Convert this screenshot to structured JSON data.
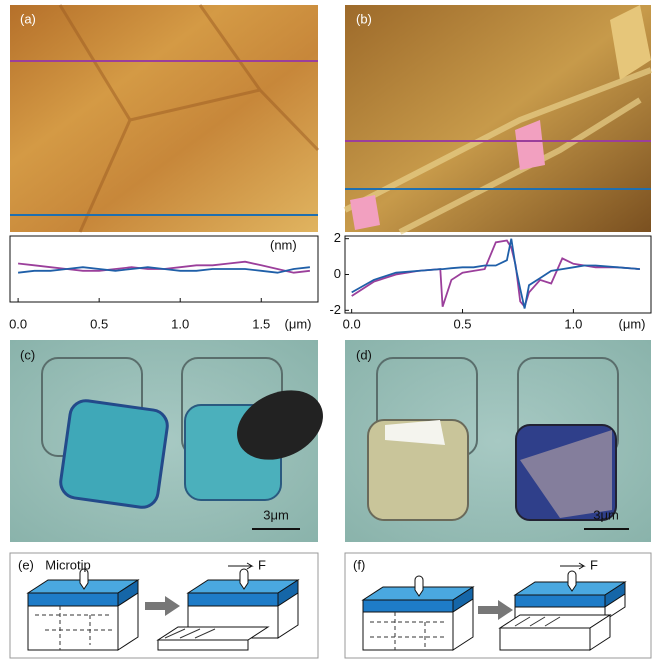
{
  "panels": {
    "a": "(a)",
    "b": "(b)",
    "c": "(c)",
    "d": "(d)",
    "e": "(e)",
    "f": "(f)"
  },
  "chart_data": [
    {
      "type": "line",
      "y_unit_label": "(nm)",
      "x_unit_label": "(μm)",
      "xlim": [
        -0.05,
        1.85
      ],
      "ylim": [
        -1.8,
        1.8
      ],
      "xticks": [
        {
          "value": 0,
          "label": "0.0"
        },
        0.5,
        {
          "value": 1,
          "label": "1.0"
        },
        1.5
      ],
      "x": [
        0,
        0.1,
        0.2,
        0.3,
        0.4,
        0.5,
        0.6,
        0.7,
        0.8,
        0.9,
        1.0,
        1.1,
        1.2,
        1.3,
        1.4,
        1.5,
        1.6,
        1.7,
        1.8
      ],
      "series": [
        {
          "color": "#9b3f9b",
          "values": [
            0.3,
            0.2,
            0.1,
            0.0,
            -0.1,
            -0.1,
            0.0,
            0.1,
            0.0,
            0.0,
            0.1,
            0.2,
            0.2,
            0.3,
            0.4,
            0.2,
            0.0,
            -0.2,
            -0.1
          ]
        },
        {
          "color": "#1f5fa8",
          "values": [
            -0.2,
            -0.1,
            -0.1,
            0.0,
            0.1,
            0.0,
            -0.1,
            0.0,
            0.1,
            0.0,
            -0.1,
            -0.1,
            0.0,
            0.0,
            0.0,
            -0.1,
            -0.2,
            0.0,
            0.1
          ]
        }
      ]
    },
    {
      "type": "line",
      "x_unit_label": "(μm)",
      "xlim": [
        -0.03,
        1.35
      ],
      "ylim": [
        -2.15,
        2.15
      ],
      "yticks": [
        2,
        0,
        -2
      ],
      "xticks": [
        {
          "value": 0,
          "label": "0.0"
        },
        0.5,
        {
          "value": 1,
          "label": "1.0"
        }
      ],
      "x": [
        0,
        0.1,
        0.2,
        0.3,
        0.4,
        0.41,
        0.45,
        0.5,
        0.55,
        0.6,
        0.65,
        0.7,
        0.72,
        0.74,
        0.76,
        0.78,
        0.8,
        0.85,
        0.9,
        0.95,
        1.0,
        1.05,
        1.1,
        1.2,
        1.3
      ],
      "series": [
        {
          "color": "#9b3f9b",
          "values": [
            -1.2,
            -0.4,
            0,
            0.2,
            0.3,
            -1.8,
            -0.3,
            0.1,
            0.2,
            0.3,
            1.8,
            1.9,
            1.5,
            0.5,
            -1.5,
            -1.8,
            -1.0,
            -0.3,
            -0.5,
            0.9,
            0.6,
            0.5,
            0.4,
            0.4,
            0.3
          ]
        },
        {
          "color": "#1f5fa8",
          "values": [
            -1.0,
            -0.3,
            0.1,
            0.2,
            0.3,
            0.3,
            0.35,
            0.4,
            0.4,
            0.5,
            0.5,
            0.8,
            2.0,
            0.4,
            -0.8,
            -1.9,
            -0.6,
            -0.2,
            0.2,
            0.3,
            0.4,
            0.5,
            0.5,
            0.4,
            0.3
          ]
        }
      ]
    }
  ],
  "scale_bars": [
    "3μm",
    "3μm"
  ],
  "diagram_e": {
    "microtip": "Microtip",
    "force": "F"
  },
  "diagram_f": {
    "force": "F"
  }
}
